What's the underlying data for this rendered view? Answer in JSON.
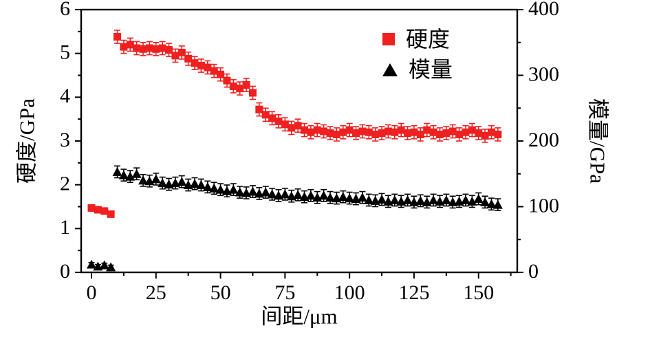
{
  "chart_data": {
    "type": "scatter",
    "title": "",
    "xlabel": "间距/μm",
    "ylabel_left": "硬度/GPa",
    "ylabel_right": "模量/GPa",
    "xlim": [
      -4,
      165
    ],
    "ylim_left": [
      0,
      6
    ],
    "ylim_right": [
      0,
      400
    ],
    "x_ticks": [
      0,
      25,
      50,
      75,
      100,
      125,
      150
    ],
    "x_minor_ticks": [
      12.5,
      37.5,
      62.5,
      87.5,
      112.5,
      137.5,
      162.5
    ],
    "y_left_ticks": [
      0,
      1,
      2,
      3,
      4,
      5,
      6
    ],
    "y_left_minor_ticks": [
      0.5,
      1.5,
      2.5,
      3.5,
      4.5,
      5.5
    ],
    "y_right_ticks": [
      0,
      100,
      200,
      300,
      400
    ],
    "y_right_minor_ticks": [
      50,
      150,
      250,
      350
    ],
    "grid": false,
    "legend_position": "upper-center-right",
    "legend": [
      {
        "label": "硬度",
        "marker": "square",
        "color": "#ee2020"
      },
      {
        "label": "模量",
        "marker": "triangle",
        "color": "#000000"
      }
    ],
    "series": [
      {
        "name": "硬度",
        "axis": "left",
        "marker": "square",
        "color": "#ee2020",
        "err": 0.15,
        "points": [
          [
            0,
            1.47,
            0.05
          ],
          [
            2.5,
            1.43,
            0.05
          ],
          [
            5,
            1.4,
            0.05
          ],
          [
            7.5,
            1.33,
            0.05
          ],
          [
            10,
            5.38
          ],
          [
            12.5,
            5.15
          ],
          [
            15,
            5.2
          ],
          [
            17.5,
            5.12
          ],
          [
            20,
            5.1
          ],
          [
            22.5,
            5.12
          ],
          [
            25,
            5.1
          ],
          [
            27.5,
            5.12
          ],
          [
            30,
            5.08
          ],
          [
            32.5,
            4.95
          ],
          [
            35,
            5.02
          ],
          [
            37.5,
            4.88
          ],
          [
            40,
            4.78
          ],
          [
            42.5,
            4.72
          ],
          [
            45,
            4.68
          ],
          [
            47.5,
            4.6
          ],
          [
            50,
            4.52
          ],
          [
            52.5,
            4.38
          ],
          [
            55,
            4.25
          ],
          [
            57.5,
            4.2
          ],
          [
            60,
            4.28
          ],
          [
            62.5,
            4.1
          ],
          [
            65,
            3.72
          ],
          [
            67.5,
            3.6
          ],
          [
            70,
            3.52
          ],
          [
            72.5,
            3.45
          ],
          [
            75,
            3.38
          ],
          [
            77.5,
            3.3
          ],
          [
            80,
            3.35
          ],
          [
            82.5,
            3.25
          ],
          [
            85,
            3.2
          ],
          [
            87.5,
            3.25
          ],
          [
            90,
            3.22
          ],
          [
            92.5,
            3.18
          ],
          [
            95,
            3.15
          ],
          [
            97.5,
            3.2
          ],
          [
            100,
            3.25
          ],
          [
            102.5,
            3.18
          ],
          [
            105,
            3.22
          ],
          [
            107.5,
            3.2
          ],
          [
            110,
            3.15
          ],
          [
            112.5,
            3.18
          ],
          [
            115,
            3.22
          ],
          [
            117.5,
            3.2
          ],
          [
            120,
            3.25
          ],
          [
            122.5,
            3.18
          ],
          [
            125,
            3.2
          ],
          [
            127.5,
            3.15
          ],
          [
            130,
            3.25
          ],
          [
            132.5,
            3.2
          ],
          [
            135,
            3.15
          ],
          [
            137.5,
            3.18
          ],
          [
            140,
            3.22
          ],
          [
            142.5,
            3.15
          ],
          [
            145,
            3.2
          ],
          [
            147.5,
            3.25
          ],
          [
            150,
            3.18
          ],
          [
            152.5,
            3.12
          ],
          [
            155,
            3.2
          ],
          [
            157.5,
            3.15
          ]
        ]
      },
      {
        "name": "模量",
        "axis": "right",
        "marker": "triangle",
        "color": "#000000",
        "err": 9,
        "points": [
          [
            0,
            12,
            3
          ],
          [
            2.5,
            9,
            3
          ],
          [
            5,
            11,
            3
          ],
          [
            7.5,
            8,
            3
          ],
          [
            10,
            153
          ],
          [
            12.5,
            148
          ],
          [
            15,
            146
          ],
          [
            17.5,
            150
          ],
          [
            20,
            140
          ],
          [
            22.5,
            139
          ],
          [
            25,
            142
          ],
          [
            27.5,
            136
          ],
          [
            30,
            134
          ],
          [
            32.5,
            136
          ],
          [
            35,
            138
          ],
          [
            37.5,
            133
          ],
          [
            40,
            135
          ],
          [
            42.5,
            133
          ],
          [
            45,
            130
          ],
          [
            47.5,
            128
          ],
          [
            50,
            126
          ],
          [
            52.5,
            124
          ],
          [
            55,
            126
          ],
          [
            57.5,
            122
          ],
          [
            60,
            121
          ],
          [
            62.5,
            123
          ],
          [
            65,
            120
          ],
          [
            67.5,
            122
          ],
          [
            70,
            119
          ],
          [
            72.5,
            117
          ],
          [
            75,
            119
          ],
          [
            77.5,
            116
          ],
          [
            80,
            118
          ],
          [
            82.5,
            115
          ],
          [
            85,
            117
          ],
          [
            87.5,
            114
          ],
          [
            90,
            117
          ],
          [
            92.5,
            114
          ],
          [
            95,
            113
          ],
          [
            97.5,
            115
          ],
          [
            100,
            113
          ],
          [
            102.5,
            112
          ],
          [
            105,
            114
          ],
          [
            107.5,
            110
          ],
          [
            110,
            109
          ],
          [
            112.5,
            111
          ],
          [
            115,
            108
          ],
          [
            117.5,
            110
          ],
          [
            120,
            108
          ],
          [
            122.5,
            110
          ],
          [
            125,
            107
          ],
          [
            127.5,
            109
          ],
          [
            130,
            107
          ],
          [
            132.5,
            110
          ],
          [
            135,
            108
          ],
          [
            137.5,
            110
          ],
          [
            140,
            107
          ],
          [
            142.5,
            108
          ],
          [
            145,
            110
          ],
          [
            147.5,
            108
          ],
          [
            150,
            112
          ],
          [
            152.5,
            107
          ],
          [
            155,
            104
          ],
          [
            157.5,
            103
          ]
        ]
      }
    ]
  }
}
